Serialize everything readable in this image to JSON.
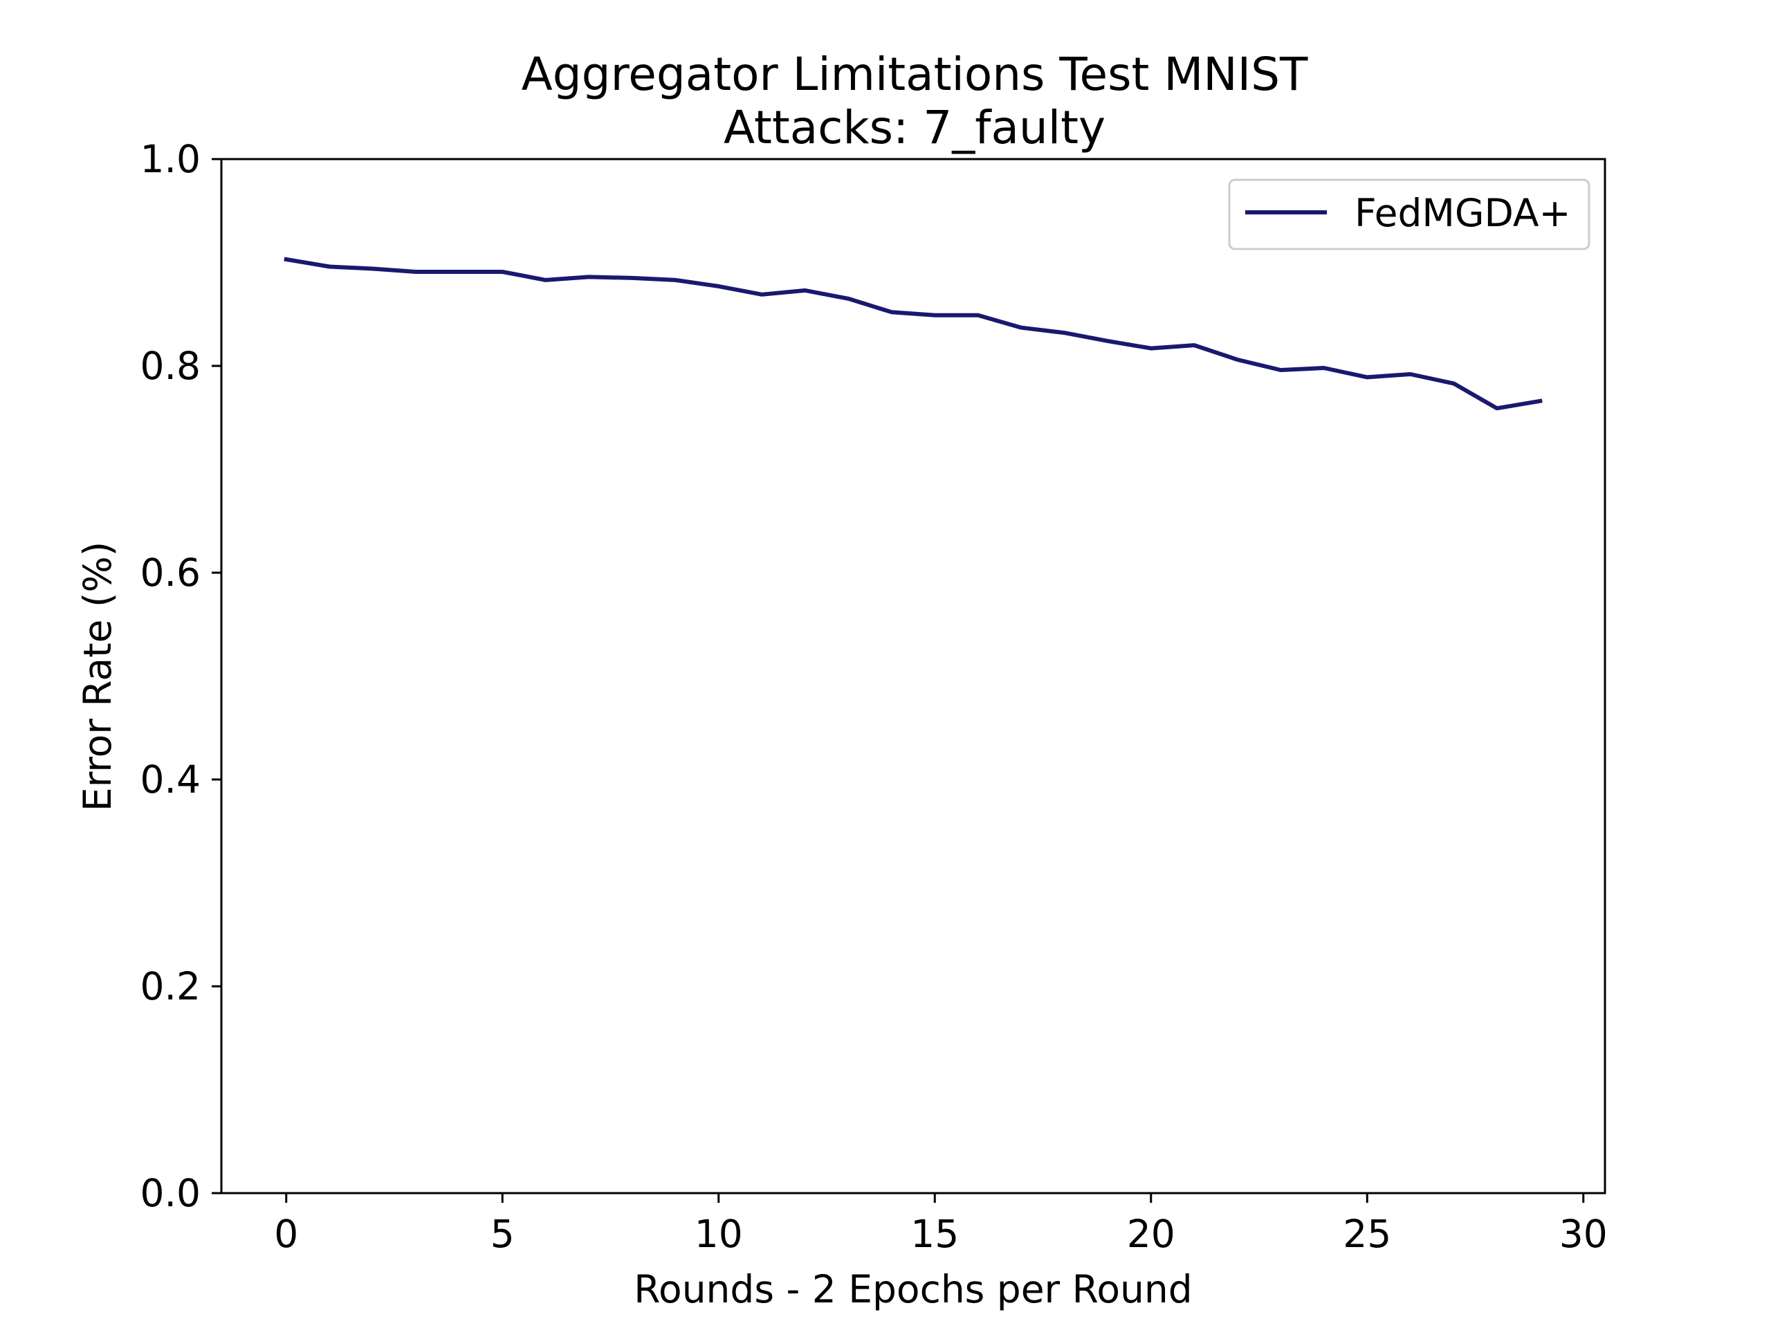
{
  "chart_data": {
    "type": "line",
    "title": "Aggregator Limitations Test MNIST",
    "subtitle": "Attacks: 7_faulty",
    "xlabel": "Rounds - 2 Epochs per Round",
    "ylabel": "Error Rate (%)",
    "xlim": [
      -1.5,
      30.5
    ],
    "ylim": [
      0.0,
      1.0
    ],
    "xticks": [
      0,
      5,
      10,
      15,
      20,
      25,
      30
    ],
    "xtick_labels": [
      "0",
      "5",
      "10",
      "15",
      "20",
      "25",
      "30"
    ],
    "yticks": [
      0.0,
      0.2,
      0.4,
      0.6,
      0.8,
      1.0
    ],
    "ytick_labels": [
      "0.0",
      "0.2",
      "0.4",
      "0.6",
      "0.8",
      "1.0"
    ],
    "grid": false,
    "legend_position": "top-right",
    "x": [
      0,
      1,
      2,
      3,
      4,
      5,
      6,
      7,
      8,
      9,
      10,
      11,
      12,
      13,
      14,
      15,
      16,
      17,
      18,
      19,
      20,
      21,
      22,
      23,
      24,
      25,
      26,
      27,
      28,
      29
    ],
    "series": [
      {
        "name": "FedMGDA+",
        "color": "#191970",
        "values": [
          0.903,
          0.896,
          0.894,
          0.891,
          0.891,
          0.891,
          0.883,
          0.886,
          0.885,
          0.883,
          0.877,
          0.869,
          0.873,
          0.865,
          0.852,
          0.849,
          0.849,
          0.837,
          0.832,
          0.824,
          0.817,
          0.82,
          0.806,
          0.796,
          0.798,
          0.789,
          0.792,
          0.783,
          0.759,
          0.766
        ]
      }
    ]
  }
}
